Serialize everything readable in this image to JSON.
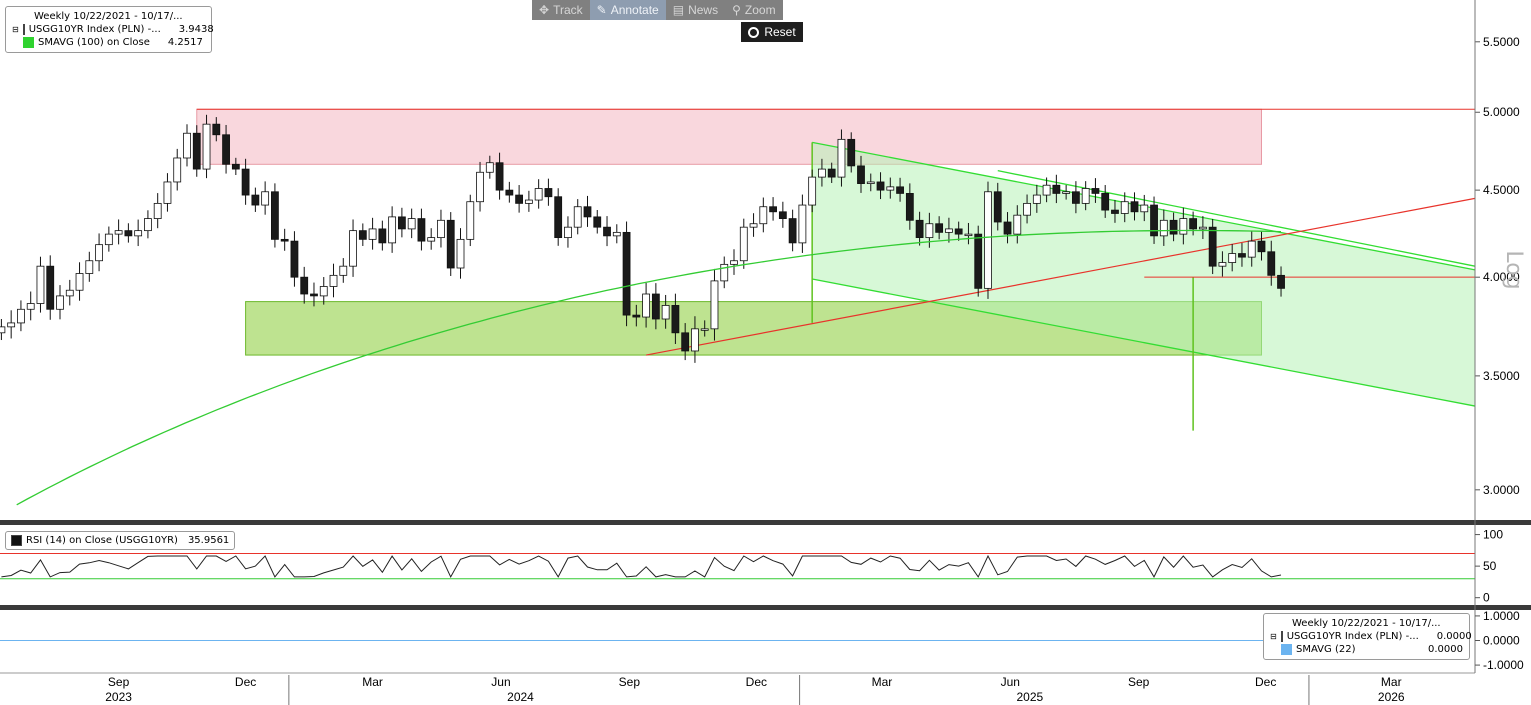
{
  "toolbar": {
    "track": "Track",
    "annotate": "Annotate",
    "news": "News",
    "zoom": "Zoom",
    "reset": "Reset"
  },
  "main_legend": {
    "header": "Weekly 10/22/2021 - 10/17/...",
    "series1_name": "USGG10YR Index (PLN) -...",
    "series1_value": "3.9438",
    "series2_name": "SMAVG (100)  on Close",
    "series2_value": "4.2517"
  },
  "rsi_legend": {
    "name": "RSI (14)  on Close (USGG10YR)",
    "value": "35.9561"
  },
  "lower_legend": {
    "header": "Weekly 10/22/2021 - 10/17/...",
    "series1_name": "USGG10YR Index (PLN) -...",
    "series1_value": "0.0000",
    "series2_name": "SMAVG (22)",
    "series2_value": "0.0000"
  },
  "log_label": "Log",
  "colors": {
    "up": "#ffffff",
    "down": "#1a1a1a",
    "sma": "#33cc33",
    "resistance": "#f7c6cf",
    "support": "#a8d96b",
    "channel": "#7dea7d",
    "redline": "#e8332b"
  },
  "chart_data": [
    {
      "type": "candlestick",
      "scale": "log",
      "ylim": [
        2.88,
        5.82
      ],
      "y_ticks": [
        "5.5000",
        "5.0000",
        "4.5000",
        "4.0000",
        "3.5000",
        "3.0000"
      ],
      "x_ticks": [
        {
          "date": "2023-09-01",
          "label": "Sep"
        },
        {
          "date": "2023-12-01",
          "label": "Dec"
        },
        {
          "date": "2024-03-01",
          "label": "Mar"
        },
        {
          "date": "2024-06-01",
          "label": "Jun"
        },
        {
          "date": "2024-09-01",
          "label": "Sep"
        },
        {
          "date": "2024-12-01",
          "label": "Dec"
        },
        {
          "date": "2025-03-01",
          "label": "Mar"
        },
        {
          "date": "2025-06-01",
          "label": "Jun"
        },
        {
          "date": "2025-09-01",
          "label": "Sep"
        },
        {
          "date": "2025-12-01",
          "label": "Dec"
        },
        {
          "date": "2026-03-01",
          "label": "Mar"
        }
      ],
      "year_labels": [
        {
          "date": "2023-09-01",
          "label": "2023"
        },
        {
          "date": "2024-06-15",
          "label": "2024"
        },
        {
          "date": "2025-06-15",
          "label": "2025"
        },
        {
          "date": "2026-03-01",
          "label": "2026"
        }
      ],
      "year_separators": [
        "2024-01-01",
        "2025-01-01",
        "2026-01-01"
      ],
      "x_range": [
        "2023-06-08",
        "2026-04-30"
      ],
      "weeks_start": "2023-06-09",
      "close": [
        3.74,
        3.76,
        3.83,
        3.86,
        4.06,
        3.83,
        3.9,
        3.93,
        4.02,
        4.09,
        4.18,
        4.24,
        4.26,
        4.23,
        4.26,
        4.33,
        4.42,
        4.55,
        4.7,
        4.86,
        4.63,
        4.92,
        4.85,
        4.66,
        4.63,
        4.47,
        4.41,
        4.49,
        4.21,
        4.2,
        4.0,
        3.91,
        3.9,
        3.95,
        4.01,
        4.06,
        4.26,
        4.21,
        4.27,
        4.19,
        4.34,
        4.27,
        4.33,
        4.2,
        4.22,
        4.32,
        4.05,
        4.21,
        4.43,
        4.61,
        4.67,
        4.5,
        4.47,
        4.42,
        4.44,
        4.51,
        4.46,
        4.22,
        4.28,
        4.4,
        4.34,
        4.28,
        4.23,
        4.25,
        3.8,
        3.79,
        3.91,
        3.78,
        3.85,
        3.71,
        3.62,
        3.73,
        3.73,
        3.98,
        4.07,
        4.09,
        4.28,
        4.3,
        4.4,
        4.37,
        4.33,
        4.19,
        4.41,
        4.58,
        4.63,
        4.58,
        4.82,
        4.65,
        4.54,
        4.55,
        4.5,
        4.52,
        4.48,
        4.32,
        4.22,
        4.3,
        4.25,
        4.27,
        4.24,
        4.24,
        3.94,
        4.49,
        4.31,
        4.24,
        4.35,
        4.42,
        4.47,
        4.53,
        4.48,
        4.49,
        4.42,
        4.51,
        4.48,
        4.38,
        4.36,
        4.43,
        4.37,
        4.41,
        4.23,
        4.32,
        4.24,
        4.33,
        4.27,
        4.28,
        4.06,
        4.08,
        4.13,
        4.11,
        4.2,
        4.14,
        4.01,
        3.94
      ],
      "sma_end": 4.2517,
      "resistance_zone": {
        "from": "2023-10-27",
        "to": "2025-11-28",
        "low": 4.66,
        "high": 5.02
      },
      "support_zone": {
        "from": "2023-12-01",
        "to": "2025-11-28",
        "low": 3.6,
        "high": 3.87
      },
      "red_trendline": [
        {
          "date": "2024-09-13",
          "y": 3.6
        },
        {
          "date": "2026-04-30",
          "y": 4.45
        }
      ],
      "red_horizontal": {
        "from": "2025-09-05",
        "to": "2026-04-30",
        "y": 4.0
      },
      "channel_upper": [
        {
          "date": "2025-01-10",
          "y": 4.8
        },
        {
          "date": "2026-04-30",
          "y": 4.04
        }
      ],
      "channel_upper2": [
        {
          "date": "2025-05-23",
          "y": 4.62
        },
        {
          "date": "2026-04-30",
          "y": 4.06
        }
      ],
      "channel_lower": [
        {
          "date": "2025-01-10",
          "y": 3.99
        },
        {
          "date": "2026-04-30",
          "y": 3.36
        }
      ],
      "green_verticals": [
        {
          "date": "2025-01-10",
          "from": 3.76,
          "to": 4.8
        },
        {
          "date": "2025-10-10",
          "from": 3.25,
          "to": 4.0
        }
      ]
    },
    {
      "type": "line",
      "name": "RSI (14)",
      "ylim": [
        -10,
        112
      ],
      "y_ticks": [
        100,
        50,
        0
      ],
      "upper_band": 70,
      "lower_band": 30,
      "last_value": 35.9561
    },
    {
      "type": "line",
      "ylim": [
        -1.2,
        1.2
      ],
      "y_ticks": [
        "1.0000",
        "0.0000",
        "-1.0000"
      ],
      "value": 0.0
    }
  ]
}
